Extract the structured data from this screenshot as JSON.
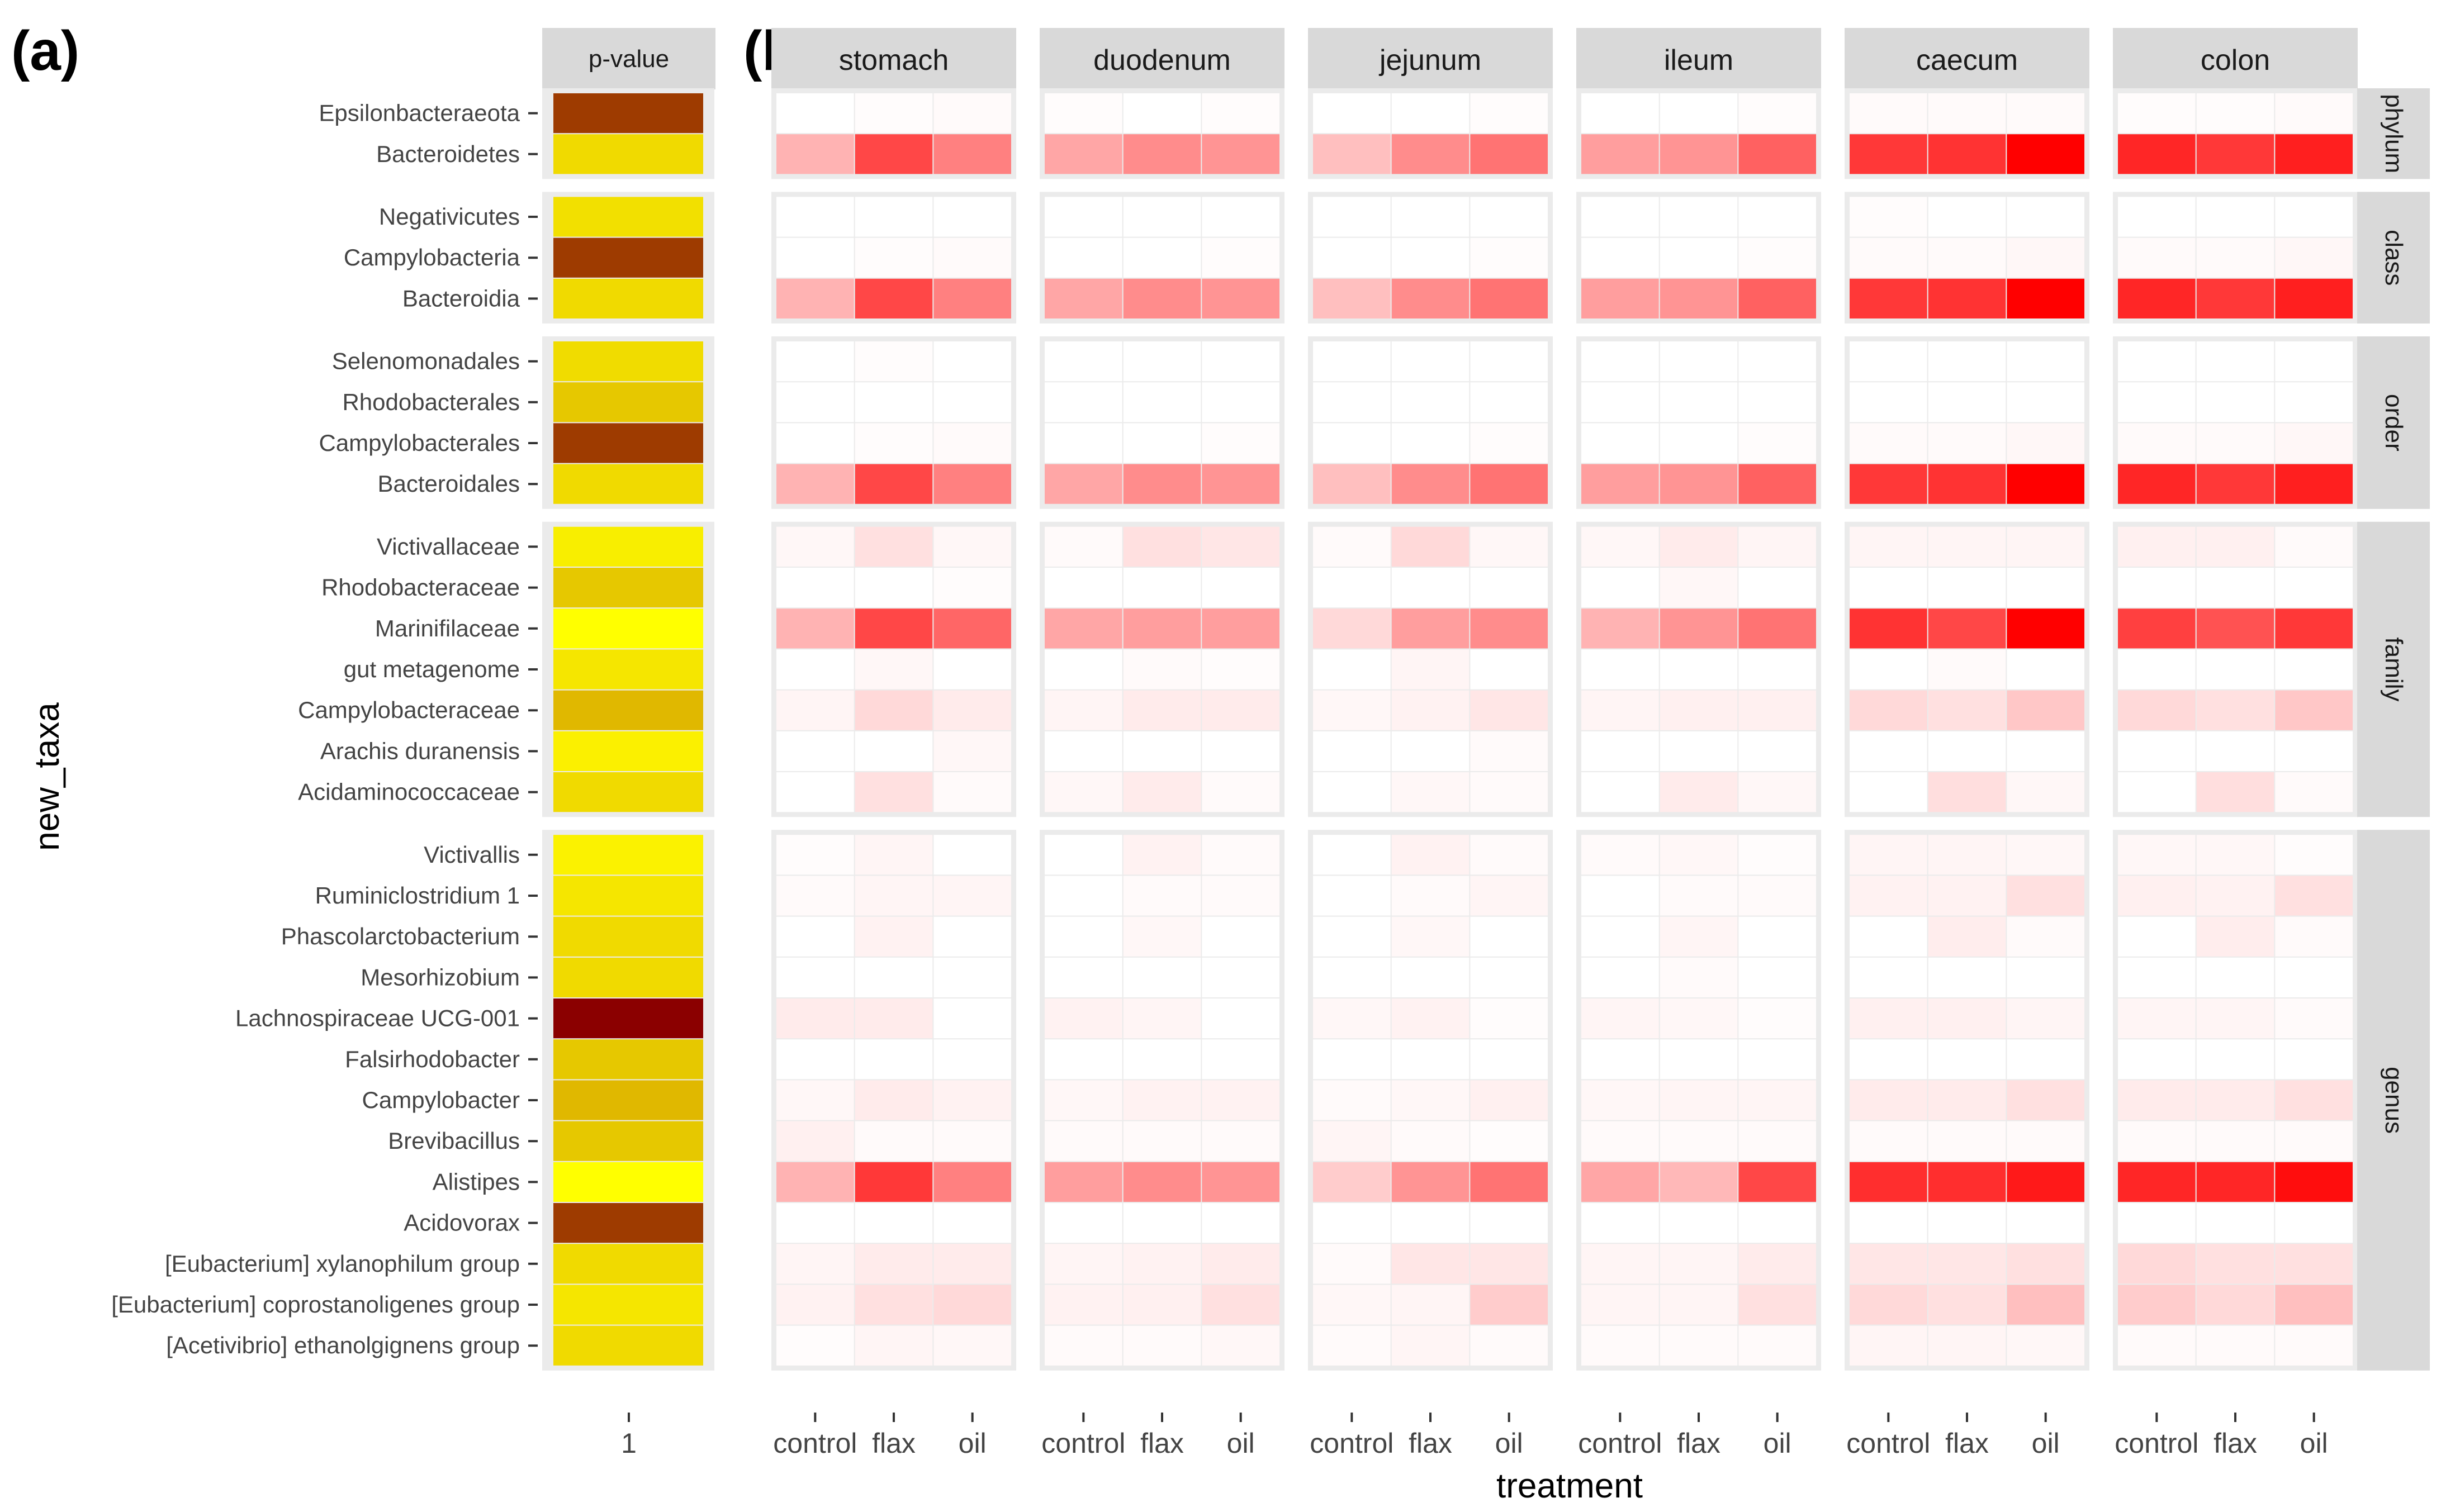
{
  "panel_a_label": "(a)",
  "panel_b_label": "(b)",
  "pvalue_strip": "p-value",
  "pvalue_xtick": "1",
  "y_axis_title": "new_taxa",
  "x_axis_title": "treatment",
  "colors": {
    "strip_bg": "#d9d9d9",
    "panel_bg": "#ebebeb",
    "heat_low": "#ffffff",
    "heat_high": "#ff0000"
  },
  "chart_data": {
    "type": "heatmap",
    "sites": [
      "stomach",
      "duodenum",
      "jejunum",
      "ileum",
      "caecum",
      "colon"
    ],
    "treatments": [
      "control",
      "flax",
      "oil"
    ],
    "groups": [
      {
        "rank": "phylum",
        "taxa": [
          "Epsilonbacteraeota",
          "Bacteroidetes"
        ]
      },
      {
        "rank": "class",
        "taxa": [
          "Negativicutes",
          "Campylobacteria",
          "Bacteroidia"
        ]
      },
      {
        "rank": "order",
        "taxa": [
          "Selenomonadales",
          "Rhodobacterales",
          "Campylobacterales",
          "Bacteroidales"
        ]
      },
      {
        "rank": "family",
        "taxa": [
          "Victivallaceae",
          "Rhodobacteraceae",
          "Marinifilaceae",
          "gut metagenome",
          "Campylobacteraceae",
          "Arachis duranensis",
          "Acidaminococcaceae"
        ]
      },
      {
        "rank": "genus",
        "taxa": [
          "Victivallis",
          "Ruminiclostridium 1",
          "Phascolarctobacterium",
          "Mesorhizobium",
          "Lachnospiraceae UCG-001",
          "Falsirhodobacter",
          "Campylobacter",
          "Brevibacillus",
          "Alistipes",
          "Acidovorax",
          "[Eubacterium] xylanophilum group",
          "[Eubacterium] coprostanoligenes group",
          "[Acetivibrio] ethanolgignens group"
        ]
      }
    ],
    "pvalue_colors": {
      "Epsilonbacteraeota": "#9e3b00",
      "Bacteroidetes": "#f0da00",
      "Negativicutes": "#f2e000",
      "Campylobacteria": "#9e3b00",
      "Bacteroidia": "#f0da00",
      "Selenomonadales": "#f0dc00",
      "Rhodobacterales": "#e6c800",
      "Campylobacterales": "#9e3b00",
      "Bacteroidales": "#f0da00",
      "Victivallaceae": "#f8ee00",
      "Rhodobacteraceae": "#e6c800",
      "Marinifilaceae": "#ffff00",
      "gut metagenome": "#f5e600",
      "Campylobacteraceae": "#e0b800",
      "Arachis duranensis": "#fbf000",
      "Acidaminococcaceae": "#f0da00",
      "Victivallis": "#fbf200",
      "Ruminiclostridium 1": "#f5e600",
      "Phascolarctobacterium": "#f0da00",
      "Mesorhizobium": "#f0da00",
      "Lachnospiraceae UCG-001": "#8b0000",
      "Falsirhodobacter": "#e6c800",
      "Campylobacter": "#e0b800",
      "Brevibacillus": "#e6c800",
      "Alistipes": "#ffff00",
      "Acidovorax": "#9e3b00",
      "[Eubacterium] xylanophilum group": "#f0da00",
      "[Eubacterium] coprostanoligenes group": "#f5e600",
      "[Acetivibrio] ethanolgignens group": "#f0da00"
    },
    "intensity": {
      "Epsilonbacteraeota": [
        [
          0,
          0.01,
          0.02
        ],
        [
          0.01,
          0,
          0.01
        ],
        [
          0,
          0,
          0.01
        ],
        [
          0,
          0,
          0.01
        ],
        [
          0.02,
          0.02,
          0.02
        ],
        [
          0.01,
          0.01,
          0.02
        ]
      ],
      "Bacteroidetes": [
        [
          0.3,
          0.72,
          0.5
        ],
        [
          0.35,
          0.45,
          0.42
        ],
        [
          0.25,
          0.45,
          0.55
        ],
        [
          0.38,
          0.42,
          0.62
        ],
        [
          0.78,
          0.8,
          1.0
        ],
        [
          0.85,
          0.78,
          0.88
        ]
      ],
      "Negativicutes": [
        [
          0,
          0,
          0
        ],
        [
          0,
          0,
          0
        ],
        [
          0,
          0,
          0
        ],
        [
          0,
          0,
          0
        ],
        [
          0.01,
          0,
          0
        ],
        [
          0,
          0,
          0
        ]
      ],
      "Campylobacteria": [
        [
          0,
          0.01,
          0.02
        ],
        [
          0,
          0,
          0.01
        ],
        [
          0,
          0,
          0.01
        ],
        [
          0,
          0,
          0.01
        ],
        [
          0.02,
          0.02,
          0.03
        ],
        [
          0.02,
          0.02,
          0.03
        ]
      ],
      "Bacteroidia": [
        [
          0.3,
          0.72,
          0.5
        ],
        [
          0.35,
          0.45,
          0.42
        ],
        [
          0.25,
          0.45,
          0.55
        ],
        [
          0.38,
          0.42,
          0.62
        ],
        [
          0.78,
          0.8,
          1.0
        ],
        [
          0.85,
          0.78,
          0.88
        ]
      ],
      "Selenomonadales": [
        [
          0,
          0.01,
          0
        ],
        [
          0,
          0,
          0
        ],
        [
          0,
          0,
          0
        ],
        [
          0,
          0,
          0
        ],
        [
          0,
          0,
          0
        ],
        [
          0,
          0,
          0
        ]
      ],
      "Rhodobacterales": [
        [
          0,
          0,
          0
        ],
        [
          0,
          0,
          0
        ],
        [
          0,
          0,
          0
        ],
        [
          0,
          0,
          0
        ],
        [
          0,
          0,
          0
        ],
        [
          0,
          0,
          0
        ]
      ],
      "Campylobacterales": [
        [
          0,
          0.01,
          0.02
        ],
        [
          0,
          0,
          0.01
        ],
        [
          0,
          0,
          0.01
        ],
        [
          0,
          0,
          0.01
        ],
        [
          0.02,
          0.02,
          0.03
        ],
        [
          0.02,
          0.02,
          0.03
        ]
      ],
      "Bacteroidales": [
        [
          0.3,
          0.72,
          0.5
        ],
        [
          0.35,
          0.45,
          0.42
        ],
        [
          0.25,
          0.45,
          0.55
        ],
        [
          0.38,
          0.42,
          0.62
        ],
        [
          0.78,
          0.8,
          1.0
        ],
        [
          0.85,
          0.78,
          0.88
        ]
      ],
      "Victivallaceae": [
        [
          0.03,
          0.12,
          0.03
        ],
        [
          0.02,
          0.12,
          0.1
        ],
        [
          0.02,
          0.15,
          0.03
        ],
        [
          0.03,
          0.08,
          0.04
        ],
        [
          0.04,
          0.04,
          0.04
        ],
        [
          0.06,
          0.06,
          0.02
        ]
      ],
      "Rhodobacteraceae": [
        [
          0,
          0,
          0.01
        ],
        [
          0,
          0,
          0
        ],
        [
          0,
          0,
          0
        ],
        [
          0,
          0.03,
          0
        ],
        [
          0,
          0,
          0
        ],
        [
          0,
          0,
          0
        ]
      ],
      "Marinifilaceae": [
        [
          0.3,
          0.72,
          0.6
        ],
        [
          0.35,
          0.38,
          0.38
        ],
        [
          0.15,
          0.38,
          0.45
        ],
        [
          0.3,
          0.42,
          0.55
        ],
        [
          0.8,
          0.72,
          1.0
        ],
        [
          0.75,
          0.68,
          0.78
        ]
      ],
      "gut metagenome": [
        [
          0,
          0.03,
          0
        ],
        [
          0,
          0.02,
          0.01
        ],
        [
          0,
          0.04,
          0
        ],
        [
          0,
          0,
          0
        ],
        [
          0,
          0.02,
          0
        ],
        [
          0,
          0,
          0
        ]
      ],
      "Campylobacteraceae": [
        [
          0.04,
          0.15,
          0.08
        ],
        [
          0.04,
          0.08,
          0.08
        ],
        [
          0.03,
          0.05,
          0.1
        ],
        [
          0.04,
          0.06,
          0.06
        ],
        [
          0.15,
          0.12,
          0.22
        ],
        [
          0.15,
          0.12,
          0.22
        ]
      ],
      "Arachis duranensis": [
        [
          0,
          0,
          0.03
        ],
        [
          0,
          0,
          0
        ],
        [
          0,
          0,
          0.02
        ],
        [
          0,
          0,
          0
        ],
        [
          0,
          0,
          0
        ],
        [
          0,
          0,
          0
        ]
      ],
      "Acidaminococcaceae": [
        [
          0,
          0.12,
          0.02
        ],
        [
          0.03,
          0.08,
          0.02
        ],
        [
          0,
          0.03,
          0.02
        ],
        [
          0,
          0.08,
          0.03
        ],
        [
          0,
          0.13,
          0.03
        ],
        [
          0,
          0.13,
          0.02
        ]
      ],
      "Victivallis": [
        [
          0.01,
          0.04,
          0
        ],
        [
          0,
          0.05,
          0.02
        ],
        [
          0,
          0.05,
          0.02
        ],
        [
          0.02,
          0.03,
          0.01
        ],
        [
          0.04,
          0.04,
          0.03
        ],
        [
          0.03,
          0.03,
          0.01
        ]
      ],
      "Ruminiclostridium 1": [
        [
          0.02,
          0.04,
          0.04
        ],
        [
          0,
          0.02,
          0.02
        ],
        [
          0,
          0.02,
          0.04
        ],
        [
          0,
          0.02,
          0.02
        ],
        [
          0.05,
          0.05,
          0.12
        ],
        [
          0.06,
          0.05,
          0.12
        ]
      ],
      "Phascolarctobacterium": [
        [
          0,
          0.05,
          0
        ],
        [
          0,
          0.03,
          0
        ],
        [
          0,
          0.03,
          0
        ],
        [
          0,
          0.04,
          0
        ],
        [
          0,
          0.07,
          0.02
        ],
        [
          0,
          0.07,
          0.02
        ]
      ],
      "Mesorhizobium": [
        [
          0,
          0,
          0
        ],
        [
          0,
          0,
          0
        ],
        [
          0,
          0,
          0
        ],
        [
          0,
          0.02,
          0
        ],
        [
          0,
          0,
          0
        ],
        [
          0,
          0,
          0
        ]
      ],
      "Lachnospiraceae UCG-001": [
        [
          0.08,
          0.08,
          0
        ],
        [
          0.05,
          0.04,
          0
        ],
        [
          0.03,
          0.05,
          0.01
        ],
        [
          0.04,
          0.03,
          0.01
        ],
        [
          0.06,
          0.06,
          0.04
        ],
        [
          0.04,
          0.04,
          0.02
        ]
      ],
      "Falsirhodobacter": [
        [
          0,
          0,
          0
        ],
        [
          0,
          0,
          0
        ],
        [
          0,
          0,
          0
        ],
        [
          0,
          0,
          0
        ],
        [
          0,
          0,
          0
        ],
        [
          0,
          0,
          0
        ]
      ],
      "Campylobacter": [
        [
          0.03,
          0.08,
          0.05
        ],
        [
          0.03,
          0.05,
          0.05
        ],
        [
          0.02,
          0.03,
          0.06
        ],
        [
          0.03,
          0.04,
          0.04
        ],
        [
          0.08,
          0.08,
          0.12
        ],
        [
          0.08,
          0.08,
          0.12
        ]
      ],
      "Brevibacillus": [
        [
          0.06,
          0.02,
          0.02
        ],
        [
          0.02,
          0.02,
          0.02
        ],
        [
          0.04,
          0.02,
          0.01
        ],
        [
          0.02,
          0.02,
          0.02
        ],
        [
          0.02,
          0.02,
          0.02
        ],
        [
          0.02,
          0.02,
          0.02
        ]
      ],
      "Alistipes": [
        [
          0.3,
          0.78,
          0.5
        ],
        [
          0.38,
          0.45,
          0.42
        ],
        [
          0.2,
          0.42,
          0.55
        ],
        [
          0.35,
          0.28,
          0.72
        ],
        [
          0.82,
          0.82,
          0.9
        ],
        [
          0.85,
          0.85,
          0.95
        ]
      ],
      "Acidovorax": [
        [
          0,
          0,
          0
        ],
        [
          0,
          0,
          0
        ],
        [
          0,
          0,
          0
        ],
        [
          0,
          0,
          0
        ],
        [
          0,
          0,
          0
        ],
        [
          0,
          0,
          0
        ]
      ],
      "[Eubacterium] xylanophilum group": [
        [
          0.04,
          0.08,
          0.08
        ],
        [
          0.04,
          0.05,
          0.08
        ],
        [
          0.02,
          0.1,
          0.1
        ],
        [
          0.04,
          0.04,
          0.08
        ],
        [
          0.1,
          0.1,
          0.12
        ],
        [
          0.15,
          0.12,
          0.12
        ]
      ],
      "[Eubacterium] coprostanoligenes group": [
        [
          0.05,
          0.12,
          0.15
        ],
        [
          0.05,
          0.06,
          0.12
        ],
        [
          0.03,
          0.04,
          0.2
        ],
        [
          0.04,
          0.04,
          0.12
        ],
        [
          0.15,
          0.12,
          0.25
        ],
        [
          0.2,
          0.15,
          0.25
        ]
      ],
      "[Acetivibrio] ethanolgignens group": [
        [
          0.01,
          0.04,
          0.03
        ],
        [
          0.02,
          0.02,
          0.03
        ],
        [
          0.02,
          0.04,
          0.02
        ],
        [
          0.02,
          0.02,
          0.02
        ],
        [
          0.04,
          0.04,
          0.03
        ],
        [
          0.02,
          0.02,
          0.02
        ]
      ]
    }
  }
}
